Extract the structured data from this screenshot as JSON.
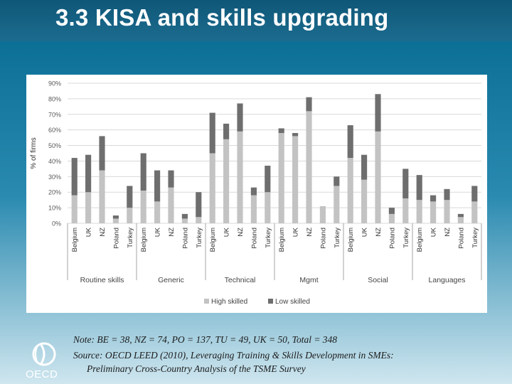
{
  "slide": {
    "title": "3.3 KISA and skills upgrading",
    "note_line1": "Note: BE = 38, NZ = 74, PO = 137, TU = 49, UK = 50, Total = 348",
    "note_line2": "Source: OECD LEED (2010), Leveraging Training & Skills Development in SMEs:",
    "note_line3": "Preliminary Cross-Country Analysis of the TSME Survey",
    "logo_text": "OECD"
  },
  "colors": {
    "high": "#c3c3c3",
    "low": "#6e6e6e",
    "grid": "#d9d9d9",
    "axis_text": "#595959"
  },
  "chart_data": {
    "type": "bar",
    "stacked": true,
    "ylabel": "% of firms",
    "ylim": [
      0,
      90
    ],
    "yticks": [
      "0%",
      "10%",
      "20%",
      "30%",
      "40%",
      "50%",
      "60%",
      "70%",
      "80%",
      "90%"
    ],
    "grid": true,
    "legend_position": "bottom",
    "groups": [
      "Routine skills",
      "Generic",
      "Technical",
      "Mgmt",
      "Social",
      "Languages"
    ],
    "categories": [
      "Belgium",
      "UK",
      "NZ",
      "Poland",
      "Turkey",
      "Belgium",
      "UK",
      "NZ",
      "Poland",
      "Turkey",
      "Belgium",
      "UK",
      "NZ",
      "Poland",
      "Turkey",
      "Belgium",
      "UK",
      "NZ",
      "Poland",
      "Turkey",
      "Belgium",
      "UK",
      "NZ",
      "Poland",
      "Turkey",
      "Belgium",
      "UK",
      "NZ",
      "Poland",
      "Turkey"
    ],
    "series": [
      {
        "name": "High skilled",
        "values": [
          18,
          20,
          34,
          3,
          10,
          21,
          14,
          23,
          3,
          4,
          45,
          54,
          59,
          18,
          20,
          58,
          56,
          72,
          11,
          24,
          42,
          28,
          59,
          6,
          16,
          15,
          14,
          15,
          4,
          14
        ]
      },
      {
        "name": "Low skilled",
        "values": [
          24,
          24,
          22,
          2,
          14,
          24,
          20,
          11,
          3,
          16,
          26,
          10,
          18,
          5,
          17,
          3,
          2,
          9,
          0,
          6,
          21,
          16,
          24,
          4,
          19,
          16,
          4,
          7,
          2,
          10
        ]
      }
    ]
  }
}
